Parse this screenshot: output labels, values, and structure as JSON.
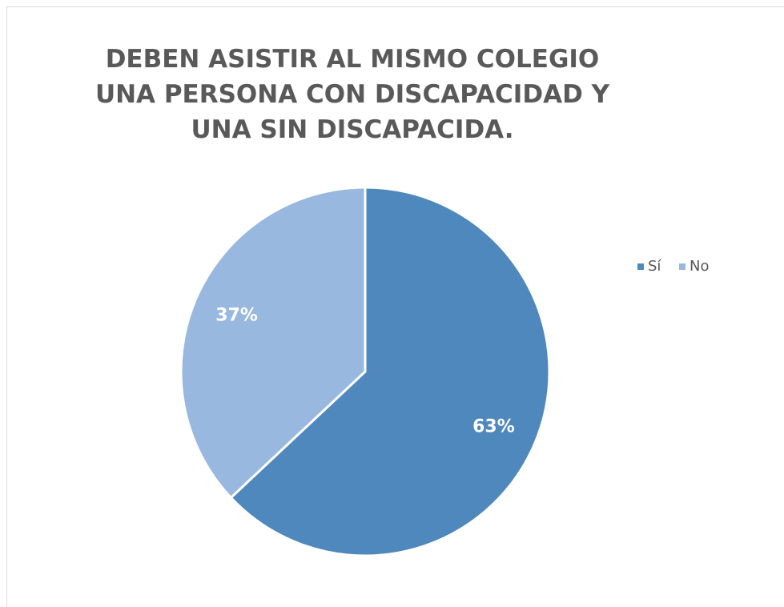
{
  "chart_data": {
    "type": "pie",
    "title": "DEBEN ASISTIR AL MISMO COLEGIO UNA PERSONA CON DISCAPACIDAD Y UNA SIN DISCAPACIDA.",
    "categories": [
      "Sí",
      "No"
    ],
    "values": [
      63,
      37
    ],
    "value_labels": [
      "63%",
      "37%"
    ],
    "colors": [
      "#4f88bd",
      "#98b8df"
    ],
    "legend": "right"
  }
}
